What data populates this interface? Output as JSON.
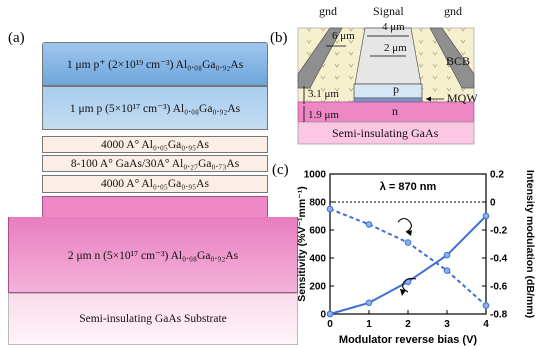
{
  "panels": {
    "a": {
      "label": "(a)",
      "layers": [
        "1 μm p⁺ (2×10¹⁹ cm⁻³) Al₀.₀₈Ga₀.₉₂As",
        "1 μm p (5×10¹⁷ cm⁻³) Al₀.₀₈Ga₀.₉₂As",
        "4000 A° Al₀.₀₅Ga₀.₉₅As",
        "8-100 A° GaAs/30A° Al₀.₂₇Ga₀.₇₃As",
        "4000 A° Al₀.₀₅Ga₀.₉₅As",
        "2 μm n (5×10¹⁷ cm⁻³) Al₀.₀₈Ga₀.₉₂As",
        "Semi-insulating GaAs Substrate"
      ]
    },
    "b": {
      "label": "(b)",
      "electrodes": [
        "gnd",
        "Signal",
        "gnd"
      ],
      "dims": [
        "4 μm",
        "2 μm",
        "6 μm",
        "3.1 μm",
        "1.9 μm"
      ],
      "regions": [
        "BCB",
        "p",
        "MQW",
        "n",
        "Semi-insulating GaAs"
      ]
    },
    "c": {
      "label": "(c)"
    }
  },
  "chart_data": {
    "type": "line",
    "annotation": "λ = 870 nm",
    "xlabel": "Modulator reverse bias (V)",
    "ylabel_left": "Sensitivity (%V⁻¹mm⁻¹)",
    "ylabel_right": "Intensity modulation (dB/mm)",
    "xlim": [
      0,
      4
    ],
    "ylim_left": [
      0,
      1000
    ],
    "ylim_right": [
      -0.8,
      0.2
    ],
    "x_ticks": [
      "0",
      "1",
      "2",
      "3",
      "4"
    ],
    "y_ticks_left": [
      "0",
      "200",
      "400",
      "600",
      "800",
      "1000"
    ],
    "y_ticks_right": [
      "-0.8",
      "-0.6",
      "-0.4",
      "-0.2",
      "0",
      "0.2"
    ],
    "series": [
      {
        "axis": "left",
        "style": "dashed",
        "x": [
          0,
          1,
          2,
          3,
          4
        ],
        "y": [
          750,
          640,
          510,
          310,
          60
        ]
      },
      {
        "axis": "right",
        "style": "solid",
        "x": [
          0,
          1,
          2,
          3,
          4
        ],
        "y": [
          -0.8,
          -0.72,
          -0.57,
          -0.38,
          -0.1
        ]
      }
    ]
  }
}
